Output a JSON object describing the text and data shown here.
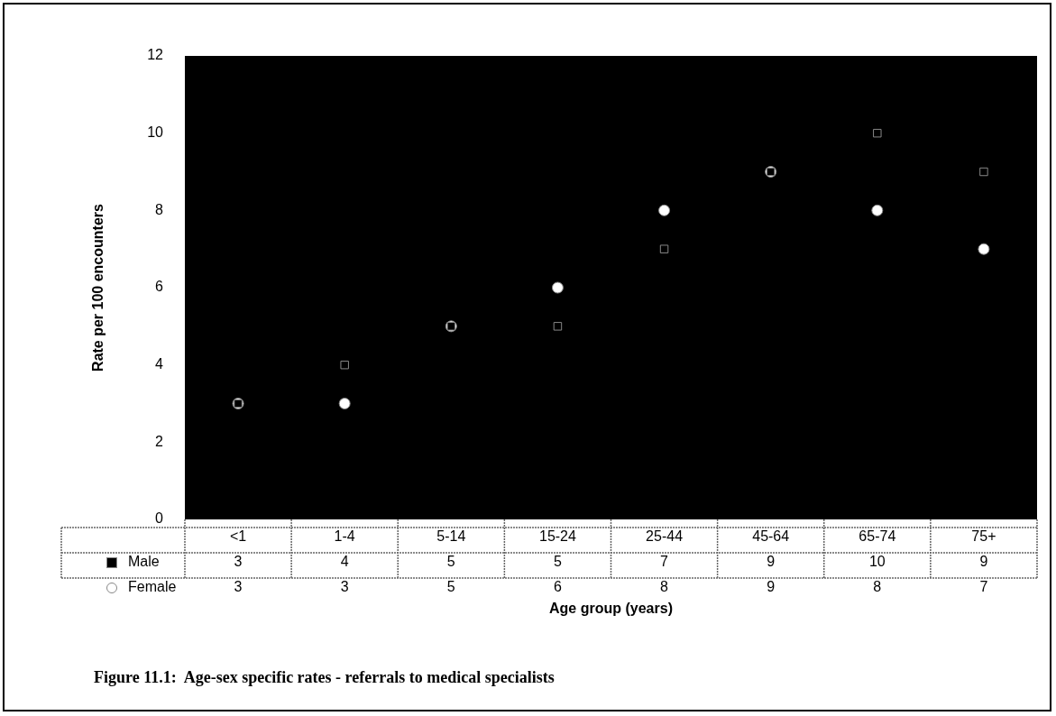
{
  "chart_data": {
    "type": "scatter",
    "title": "Figure 11.1:  Age-sex specific rates - referrals to medical specialists",
    "xlabel": "Age group (years)",
    "ylabel": "Rate per 100 encounters",
    "categories": [
      "<1",
      "1-4",
      "5-14",
      "15-24",
      "25-44",
      "45-64",
      "65-74",
      "75+"
    ],
    "series": [
      {
        "name": "Male",
        "color": "#000000",
        "marker": "square",
        "values": [
          3,
          4,
          5,
          5,
          7,
          9,
          10,
          9
        ]
      },
      {
        "name": "Female",
        "color": "#ffffff",
        "marker": "circle",
        "values": [
          3,
          3,
          5,
          6,
          8,
          9,
          8,
          7
        ]
      }
    ],
    "ylim": [
      0,
      12
    ],
    "yticks": [
      0,
      2,
      4,
      6,
      8,
      10,
      12
    ],
    "grid": false,
    "legend": "bottom",
    "data_labels": true
  }
}
